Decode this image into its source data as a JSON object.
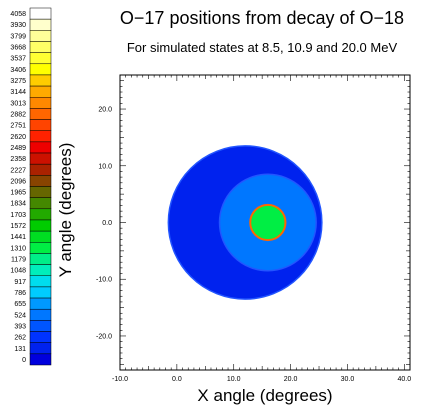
{
  "chart_data": {
    "type": "heatmap",
    "title": "O−17 positions from decay of O−18",
    "subtitle": "For simulated states at 8.5, 10.9 and 20.0 MeV",
    "xlabel": "X angle (degrees)",
    "ylabel": "Y angle (degrees)",
    "xlim": [
      -10,
      41
    ],
    "ylim": [
      -26,
      26
    ],
    "xticks": [
      "-10.0",
      "0.0",
      "10.0",
      "20.0",
      "30.0",
      "40.0"
    ],
    "xtick_values": [
      -10,
      0,
      10,
      20,
      30,
      40
    ],
    "yticks": [
      "20.0",
      "10.0",
      "0.0",
      "-10.0",
      "-20.0"
    ],
    "ytick_values": [
      20,
      10,
      0,
      -10,
      -20
    ],
    "color_scale": {
      "labels": [
        "4058",
        "3930",
        "3799",
        "3668",
        "3537",
        "3406",
        "3275",
        "3144",
        "3013",
        "2882",
        "2751",
        "2620",
        "2489",
        "2358",
        "2227",
        "2096",
        "1965",
        "1834",
        "1703",
        "1572",
        "1441",
        "1310",
        "1179",
        "1048",
        "917",
        "786",
        "655",
        "524",
        "393",
        "262",
        "131",
        "0"
      ],
      "colors": [
        "#ffffff",
        "#ffffcc",
        "#ffff99",
        "#ffff66",
        "#ffff33",
        "#ffff00",
        "#ffcc00",
        "#ffaa00",
        "#ff8800",
        "#ff6600",
        "#ff4400",
        "#ff2200",
        "#ee0000",
        "#cc1100",
        "#aa2200",
        "#884400",
        "#666600",
        "#448800",
        "#22aa00",
        "#00cc00",
        "#00dd22",
        "#00ee44",
        "#00ee88",
        "#00eebb",
        "#00ddee",
        "#00ccff",
        "#0099ff",
        "#0077ff",
        "#0055ff",
        "#0033ff",
        "#0022ee",
        "#0000dd"
      ]
    },
    "rings": [
      {
        "center": [
          12,
          0
        ],
        "outer_radius": 13.5,
        "inner_radius": 6.8,
        "value": 131
      },
      {
        "center": [
          16,
          0
        ],
        "outer_radius": 8.5,
        "inner_radius": 3.0,
        "value": 524
      },
      {
        "center": [
          16,
          0
        ],
        "outer_radius": 3.1,
        "inner_radius": 0,
        "value": 1310
      }
    ],
    "grid": false,
    "legend": "left"
  }
}
